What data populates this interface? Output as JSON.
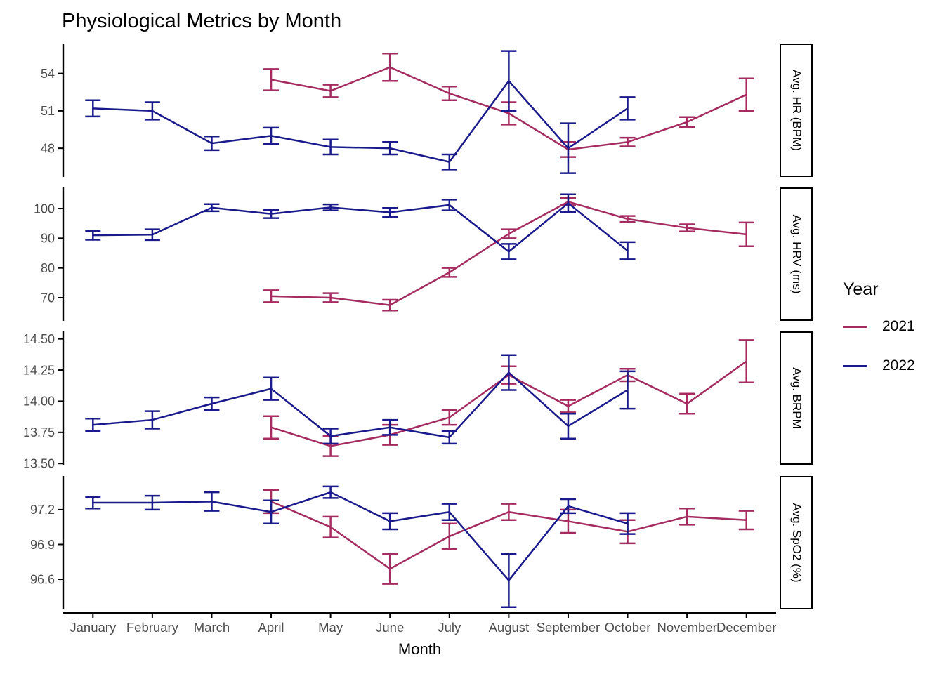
{
  "chart_data": {
    "type": "line",
    "title": "Physiological Metrics by Month",
    "xlabel": "Month",
    "grid": false,
    "theme": "classic",
    "axis_text_color": "#4d4d4d",
    "axis_line_color": "#000000",
    "categories": [
      "January",
      "February",
      "March",
      "April",
      "May",
      "June",
      "July",
      "August",
      "September",
      "October",
      "November",
      "December"
    ],
    "legend": {
      "title": "Year",
      "position": "right",
      "entries": [
        {
          "label": "2021",
          "color": "#A52C60"
        },
        {
          "label": "2022",
          "color": "#1A1A8C"
        }
      ]
    },
    "facets": [
      {
        "label": "Avg. HR (BPM)",
        "ylim": [
          45.7,
          56.4
        ],
        "yticks": [
          48,
          51,
          54
        ],
        "ytick_labels": [
          "48",
          "51",
          "54"
        ],
        "series": [
          {
            "name": "2021",
            "values": [
              null,
              null,
              null,
              53.5,
              52.6,
              54.5,
              52.4,
              50.8,
              47.9,
              48.5,
              50.1,
              52.3
            ],
            "errors": [
              null,
              null,
              null,
              0.85,
              0.5,
              1.1,
              0.55,
              0.9,
              0.6,
              0.35,
              0.4,
              1.3
            ]
          },
          {
            "name": "2022",
            "values": [
              51.2,
              51.0,
              48.4,
              49.0,
              48.1,
              48.0,
              46.9,
              53.4,
              48.0,
              51.2,
              null,
              null
            ],
            "errors": [
              0.65,
              0.7,
              0.55,
              0.65,
              0.6,
              0.5,
              0.6,
              2.4,
              2.0,
              0.9,
              null,
              null
            ]
          }
        ]
      },
      {
        "label": "Avg. HRV (ms)",
        "ylim": [
          62.2,
          107.1
        ],
        "yticks": [
          70,
          80,
          90,
          100
        ],
        "ytick_labels": [
          "70",
          "80",
          "90",
          "100"
        ],
        "series": [
          {
            "name": "2021",
            "values": [
              null,
              null,
              null,
              70.5,
              70.0,
              67.5,
              78.5,
              91.5,
              102.3,
              96.5,
              93.5,
              91.3
            ],
            "errors": [
              null,
              null,
              null,
              2.0,
              1.5,
              1.8,
              1.5,
              1.5,
              1.2,
              1.0,
              1.2,
              4.0
            ]
          },
          {
            "name": "2022",
            "values": [
              91.0,
              91.2,
              100.3,
              98.2,
              100.4,
              98.7,
              101.2,
              85.5,
              101.8,
              85.8,
              null,
              null
            ],
            "errors": [
              1.5,
              1.8,
              1.2,
              1.4,
              1.0,
              1.5,
              1.8,
              2.6,
              3.0,
              2.9,
              null,
              null
            ]
          }
        ]
      },
      {
        "label": "Avg. BRPM",
        "ylim": [
          13.49,
          14.56
        ],
        "yticks": [
          13.5,
          13.75,
          14.0,
          14.25,
          14.5
        ],
        "ytick_labels": [
          "13.50",
          "13.75",
          "14.00",
          "14.25",
          "14.50"
        ],
        "series": [
          {
            "name": "2021",
            "values": [
              null,
              null,
              null,
              13.79,
              13.64,
              13.73,
              13.87,
              14.21,
              13.96,
              14.21,
              13.98,
              14.32
            ],
            "errors": [
              null,
              null,
              null,
              0.09,
              0.08,
              0.08,
              0.06,
              0.07,
              0.05,
              0.05,
              0.08,
              0.17
            ]
          },
          {
            "name": "2022",
            "values": [
              13.81,
              13.85,
              13.98,
              14.1,
              13.72,
              13.79,
              13.71,
              14.23,
              13.8,
              14.09,
              null,
              null
            ],
            "errors": [
              0.05,
              0.07,
              0.05,
              0.09,
              0.06,
              0.06,
              0.05,
              0.14,
              0.1,
              0.15,
              null,
              null
            ]
          }
        ]
      },
      {
        "label": "Avg. SpO2 (%)",
        "ylim": [
          96.34,
          97.49
        ],
        "yticks": [
          96.6,
          96.9,
          97.2
        ],
        "ytick_labels": [
          "96.6",
          "96.9",
          "97.2"
        ],
        "series": [
          {
            "name": "2021",
            "values": [
              null,
              null,
              null,
              97.27,
              97.05,
              96.69,
              96.97,
              97.18,
              97.1,
              97.01,
              97.14,
              97.11
            ],
            "errors": [
              null,
              null,
              null,
              0.1,
              0.09,
              0.13,
              0.11,
              0.07,
              0.1,
              0.1,
              0.07,
              0.08
            ]
          },
          {
            "name": "2022",
            "values": [
              97.26,
              97.26,
              97.27,
              97.18,
              97.35,
              97.1,
              97.18,
              96.59,
              97.23,
              97.08,
              null,
              null
            ],
            "errors": [
              0.05,
              0.06,
              0.08,
              0.1,
              0.05,
              0.07,
              0.07,
              0.23,
              0.06,
              0.09,
              null,
              null
            ]
          }
        ]
      }
    ]
  }
}
